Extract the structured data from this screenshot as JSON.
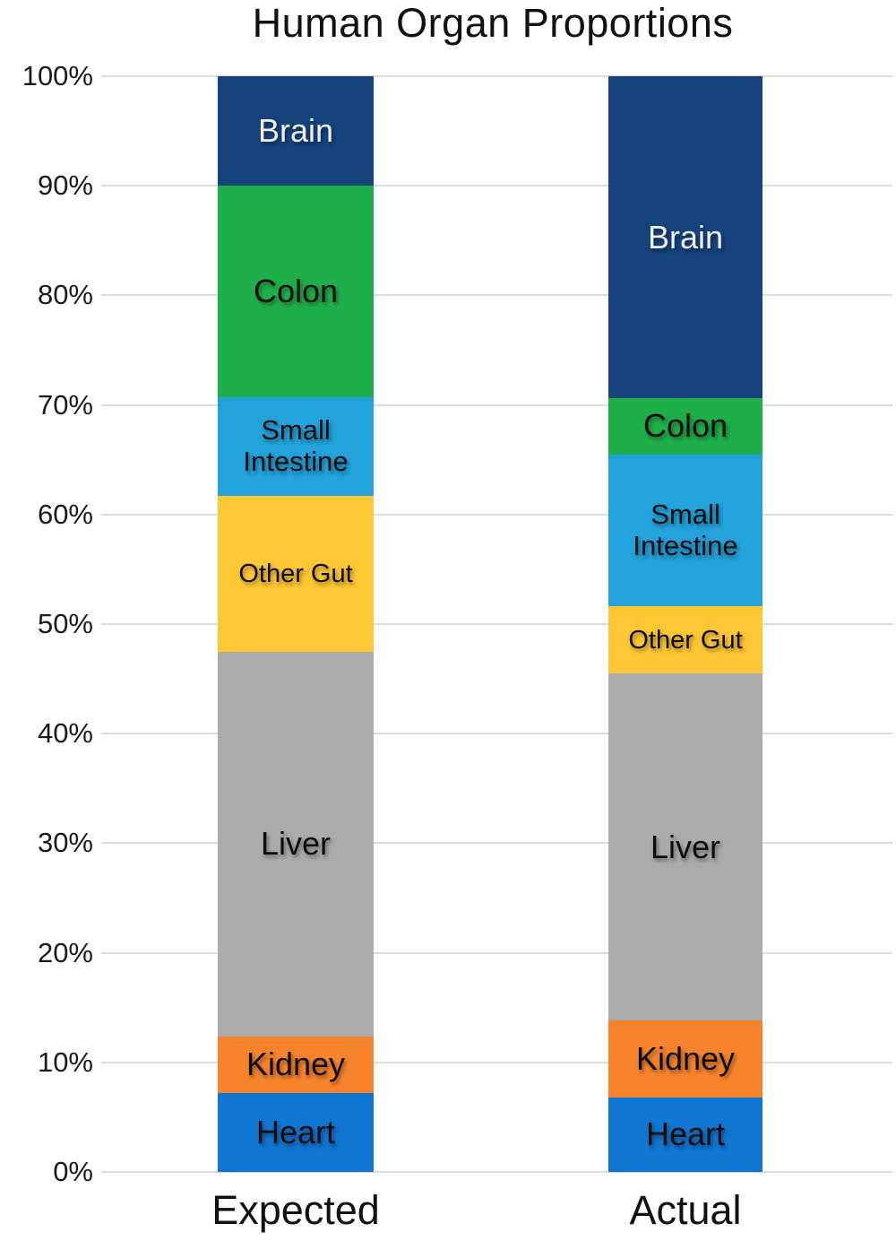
{
  "title": "Human Organ Proportions",
  "colors": {
    "background": "#ffffff",
    "gridline": "#dcdcdc",
    "axis_text": "#1a1a1a",
    "title_text": "#111111"
  },
  "chart_data": {
    "type": "bar",
    "stacked": true,
    "orientation": "vertical",
    "title": "Human Organ Proportions",
    "xlabel": "",
    "ylabel": "",
    "grid": true,
    "legend": "none",
    "categories": [
      "Expected",
      "Actual"
    ],
    "y_axis": {
      "min": 0,
      "max": 100,
      "tick_step": 10,
      "tick_labels": [
        "0%",
        "10%",
        "20%",
        "30%",
        "40%",
        "50%",
        "60%",
        "70%",
        "80%",
        "90%",
        "100%"
      ]
    },
    "series": [
      {
        "name": "Heart",
        "color": "#1176d2",
        "label_color": "#0d0d0d",
        "values": [
          7.2,
          6.8
        ]
      },
      {
        "name": "Kidney",
        "color": "#f8832d",
        "label_color": "#0d0d0d",
        "values": [
          5.2,
          7.0
        ]
      },
      {
        "name": "Liver",
        "color": "#ababab",
        "label_color": "#0d0d0d",
        "values": [
          35.1,
          31.7
        ]
      },
      {
        "name": "Other Gut",
        "color": "#ffc733",
        "label_color": "#0d0d0d",
        "values": [
          14.2,
          6.1
        ]
      },
      {
        "name": "Small Intestine",
        "color": "#22a3dc",
        "label_color": "#0d0d0d",
        "values": [
          9.0,
          13.9
        ]
      },
      {
        "name": "Colon",
        "color": "#1faf4a",
        "label_color": "#0d0d0d",
        "values": [
          19.3,
          5.1
        ]
      },
      {
        "name": "Brain",
        "color": "#17437d",
        "label_color": "#eef2f8",
        "values": [
          10.0,
          29.4
        ]
      }
    ]
  }
}
